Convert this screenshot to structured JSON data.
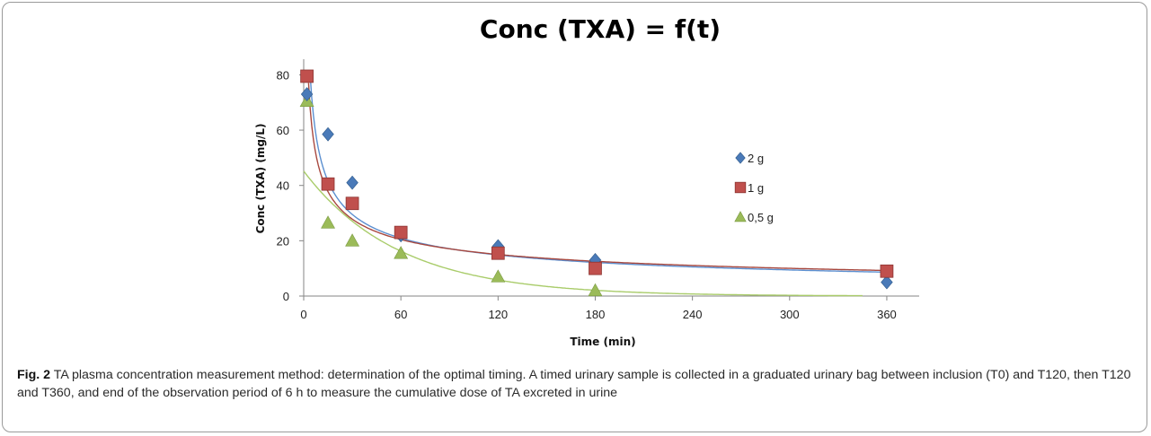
{
  "figure": {
    "label": "Fig. 2",
    "caption": "TA plasma concentration measurement method: determination of the optimal timing. A timed urinary sample is collected in a graduated urinary bag between inclusion (T0) and T120, then T120 and T360, and end of the observation period of 6 h to measure the cumulative dose of TA excreted in urine"
  },
  "chart_data": {
    "type": "scatter",
    "title": "Conc (TXA) = f(t)",
    "xlabel": "Time (min)",
    "ylabel": "Conc (TXA) (mg/L)",
    "xlim": [
      0,
      380
    ],
    "ylim": [
      0,
      85
    ],
    "xticks": [
      0,
      60,
      120,
      180,
      240,
      300,
      360
    ],
    "yticks": [
      0,
      20,
      40,
      60,
      80
    ],
    "grid": false,
    "legend_position": "right",
    "series": [
      {
        "name": "2 g",
        "marker": "diamond",
        "color": "#4a7ab8",
        "trend_color": "#5b8fd0",
        "x": [
          2,
          15,
          30,
          60,
          120,
          180,
          360
        ],
        "y": [
          73,
          58.5,
          41,
          22,
          18,
          13,
          5
        ]
      },
      {
        "name": "1 g",
        "marker": "square",
        "color": "#c0504d",
        "trend_color": "#a8483f",
        "x": [
          2,
          15,
          30,
          60,
          120,
          180,
          360
        ],
        "y": [
          79.5,
          40.5,
          33.5,
          23,
          15.5,
          10,
          9
        ]
      },
      {
        "name": "0,5 g",
        "marker": "triangle",
        "color": "#9bbb59",
        "trend_color": "#a9cc6a",
        "x": [
          2,
          15,
          30,
          60,
          120,
          180
        ],
        "y": [
          70.5,
          26.5,
          20,
          15.5,
          7,
          2
        ]
      }
    ]
  }
}
